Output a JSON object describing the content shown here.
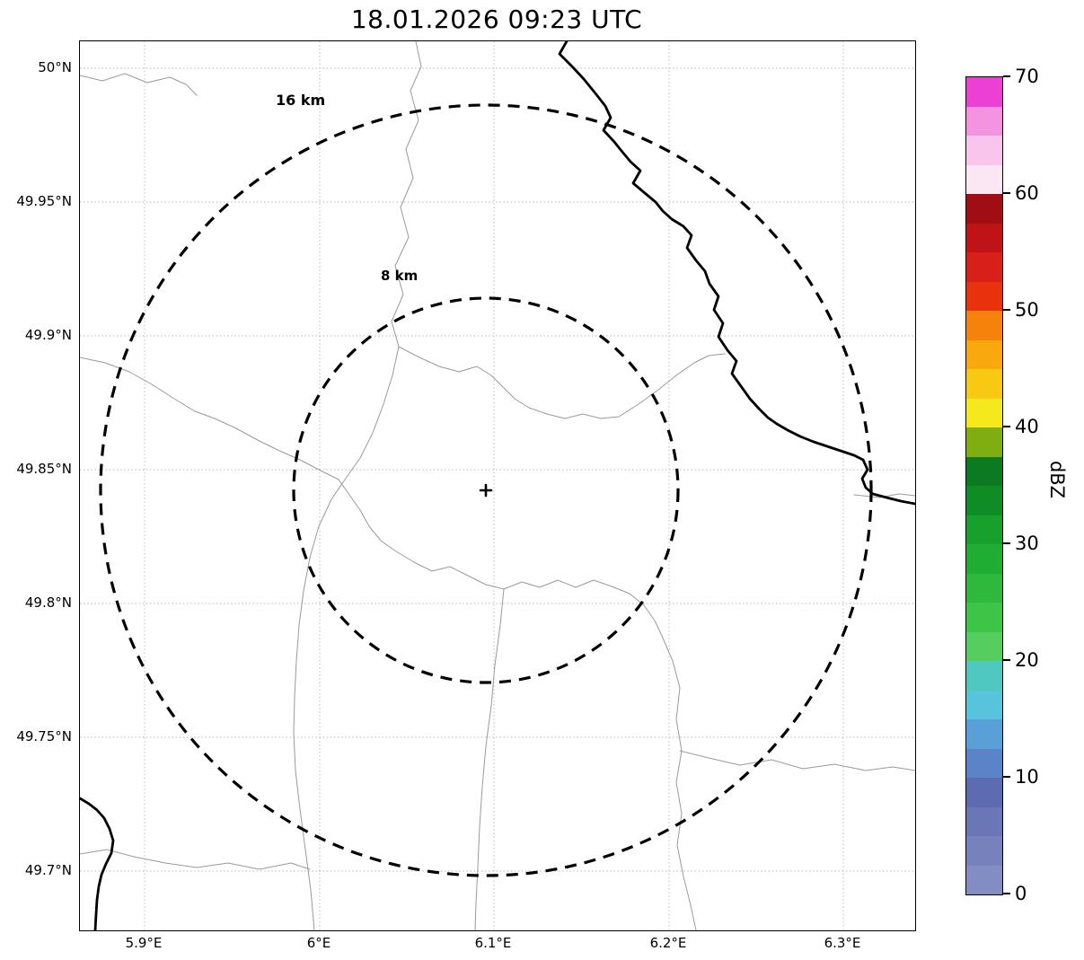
{
  "title": "18.01.2026 09:23 UTC",
  "map": {
    "x_ticks": [
      {
        "label": "5.9°E",
        "lon": 5.9
      },
      {
        "label": "6°E",
        "lon": 6.0
      },
      {
        "label": "6.1°E",
        "lon": 6.1
      },
      {
        "label": "6.2°E",
        "lon": 6.2
      },
      {
        "label": "6.3°E",
        "lon": 6.3
      }
    ],
    "y_ticks": [
      {
        "label": "50°N",
        "lat": 50.0
      },
      {
        "label": "49.95°N",
        "lat": 49.95
      },
      {
        "label": "49.9°N",
        "lat": 49.9
      },
      {
        "label": "49.85°N",
        "lat": 49.85
      },
      {
        "label": "49.8°N",
        "lat": 49.8
      },
      {
        "label": "49.75°N",
        "lat": 49.75
      },
      {
        "label": "49.7°N",
        "lat": 49.7
      }
    ],
    "rings": [
      {
        "label": "16 km",
        "radius_km": 16
      },
      {
        "label": "8 km",
        "radius_km": 8
      }
    ]
  },
  "colorbar": {
    "label": "dBZ",
    "min": 0,
    "max": 70,
    "step": 2.5,
    "ticks": [
      0,
      10,
      20,
      30,
      40,
      50,
      60,
      70
    ],
    "colors": [
      "#838dc3",
      "#7682bc",
      "#6a77b6",
      "#5d6cb0",
      "#5b84c8",
      "#59a0d8",
      "#57c4dc",
      "#4fc8c0",
      "#55cd5f",
      "#3ec447",
      "#2eb83c",
      "#1fae33",
      "#17a02c",
      "#108c26",
      "#0b7a20",
      "#7fae12",
      "#f5e81c",
      "#f8c912",
      "#f9a80d",
      "#f5820a",
      "#e8320e",
      "#d81f1a",
      "#c01318",
      "#a00d14",
      "#fbe6f4",
      "#f8c5ec",
      "#f493e0",
      "#ec3fd4"
    ]
  },
  "chart_data": {
    "type": "heatmap",
    "subtype": "weather-radar-map",
    "title": "18.01.2026 09:23 UTC",
    "xlabel_ticks": [
      "5.9°E",
      "6°E",
      "6.1°E",
      "6.2°E",
      "6.3°E"
    ],
    "ylabel_ticks": [
      "50°N",
      "49.95°N",
      "49.9°N",
      "49.85°N",
      "49.8°N",
      "49.75°N",
      "49.7°N"
    ],
    "lon_range": [
      5.863,
      6.341
    ],
    "lat_range": [
      49.678,
      50.01
    ],
    "range_rings_km": [
      8,
      16
    ],
    "radar_site_marker": "cross at ring center (~6.09°E, 49.843°N)",
    "colorbar": {
      "label": "dBZ",
      "range": [
        0,
        70
      ],
      "ticks": [
        0,
        10,
        20,
        30,
        40,
        50,
        60,
        70
      ]
    },
    "echoes": "no reflectivity echoes visible (map background blank)",
    "grid": "dotted graticule at tick positions",
    "legend_position": "right colorbar"
  }
}
